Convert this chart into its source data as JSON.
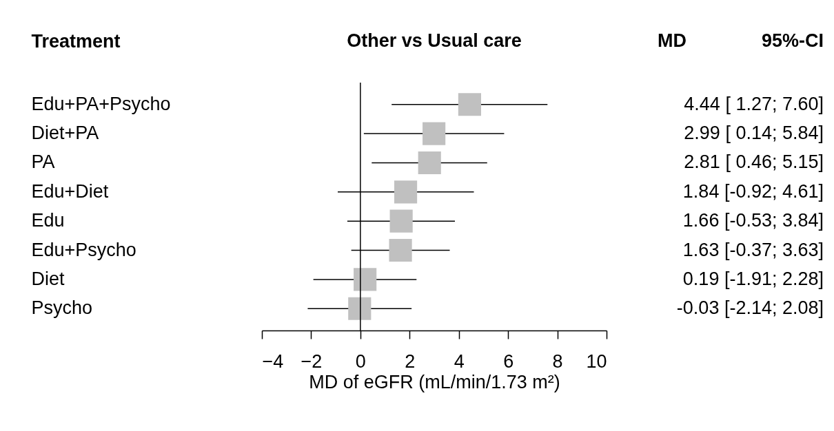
{
  "chart_data": {
    "type": "scatter",
    "orientation": "horizontal",
    "title": "Other vs Usual care",
    "ylabel": "Treatment",
    "xlabel": "MD of eGFR (mL/min/1.73 m²)",
    "annotations": [
      "MD",
      "95%-CI"
    ],
    "categories": [
      "Edu+PA+Psycho",
      "Diet+PA",
      "PA",
      "Edu+Diet",
      "Edu",
      "Edu+Psycho",
      "Diet",
      "Psycho"
    ],
    "values": [
      4.44,
      2.99,
      2.81,
      1.84,
      1.66,
      1.63,
      0.19,
      -0.03
    ],
    "errors": [
      [
        1.27,
        7.6
      ],
      [
        0.14,
        5.84
      ],
      [
        0.46,
        5.15
      ],
      [
        -0.92,
        4.61
      ],
      [
        -0.53,
        3.84
      ],
      [
        -0.37,
        3.63
      ],
      [
        -1.91,
        2.28
      ],
      [
        -2.14,
        2.08
      ]
    ],
    "value_labels": [
      "4.44 [ 1.27; 7.60]",
      "2.99 [ 0.14; 5.84]",
      "2.81 [ 0.46; 5.15]",
      "1.84 [-0.92; 4.61]",
      "1.66 [-0.53; 3.84]",
      "1.63 [-0.37; 3.63]",
      "0.19 [-1.91; 2.28]",
      "-0.03 [-2.14; 2.08]"
    ],
    "color": "#c0c0c0",
    "marker": "square",
    "xlim": [
      -4,
      10
    ],
    "xticks": [
      -4,
      -2,
      0,
      2,
      4,
      6,
      8,
      10
    ],
    "ref_lines": [
      {
        "axis": "x",
        "value": 0,
        "color": "#000000"
      }
    ],
    "grid": false
  }
}
